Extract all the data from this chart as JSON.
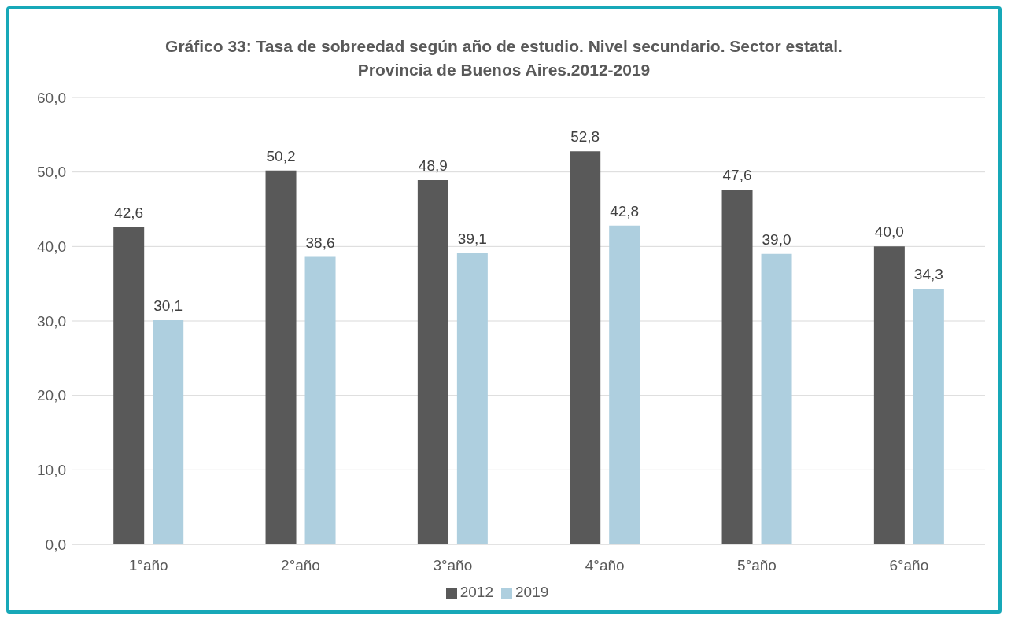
{
  "chart_data": {
    "type": "bar",
    "title": "Gráfico 33: Tasa de sobreedad según año de estudio. Nivel secundario. Sector estatal.\nProvincia de Buenos Aires.2012-2019",
    "categories": [
      "1°año",
      "2°año",
      "3°año",
      "4°año",
      "5°año",
      "6°año"
    ],
    "series": [
      {
        "name": "2012",
        "color": "#595959",
        "values": [
          42.6,
          50.2,
          48.9,
          52.8,
          47.6,
          40.0
        ],
        "value_labels": [
          "42,6",
          "50,2",
          "48,9",
          "52,8",
          "47,6",
          "40,0"
        ]
      },
      {
        "name": "2019",
        "color": "#aecfdf",
        "values": [
          30.1,
          38.6,
          39.1,
          42.8,
          39.0,
          34.3
        ],
        "value_labels": [
          "30,1",
          "38,6",
          "39,1",
          "42,8",
          "39,0",
          "34,3"
        ]
      }
    ],
    "ylim": [
      0,
      60
    ],
    "yticks": [
      {
        "value": 0,
        "label": "0,0"
      },
      {
        "value": 10,
        "label": "10,0"
      },
      {
        "value": 20,
        "label": "20,0"
      },
      {
        "value": 30,
        "label": "30,0"
      },
      {
        "value": 40,
        "label": "40,0"
      },
      {
        "value": 50,
        "label": "50,0"
      },
      {
        "value": 60,
        "label": "60,0"
      }
    ],
    "grid": "y",
    "legend": "bottom"
  }
}
